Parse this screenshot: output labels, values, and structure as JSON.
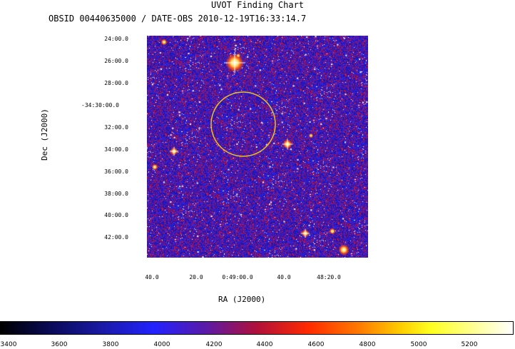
{
  "title": "UVOT Finding Chart",
  "subtitle": "OBSID 00440635000 / DATE-OBS 2010-12-19T16:33:14.7",
  "axes": {
    "xlabel": "RA (J2000)",
    "ylabel": "Dec (J2000)"
  },
  "dec_ticks": [
    "24:00.0",
    "26:00.0",
    "28:00.0",
    "-34:30:00.0",
    "32:00.0",
    "34:00.0",
    "36:00.0",
    "38:00.0",
    "40:00.0",
    "42:00.0"
  ],
  "ra_ticks": [
    "40.0",
    "20.0",
    "0:49:00.0",
    "40.0",
    "48:20.0"
  ],
  "colorbar": {
    "ticks": [
      "3400",
      "3600",
      "3800",
      "4000",
      "4200",
      "4400",
      "4600",
      "4800",
      "5000",
      "5200"
    ]
  },
  "colors": {
    "background_noise": "#2020c8",
    "error_circle": "#e8c020"
  }
}
